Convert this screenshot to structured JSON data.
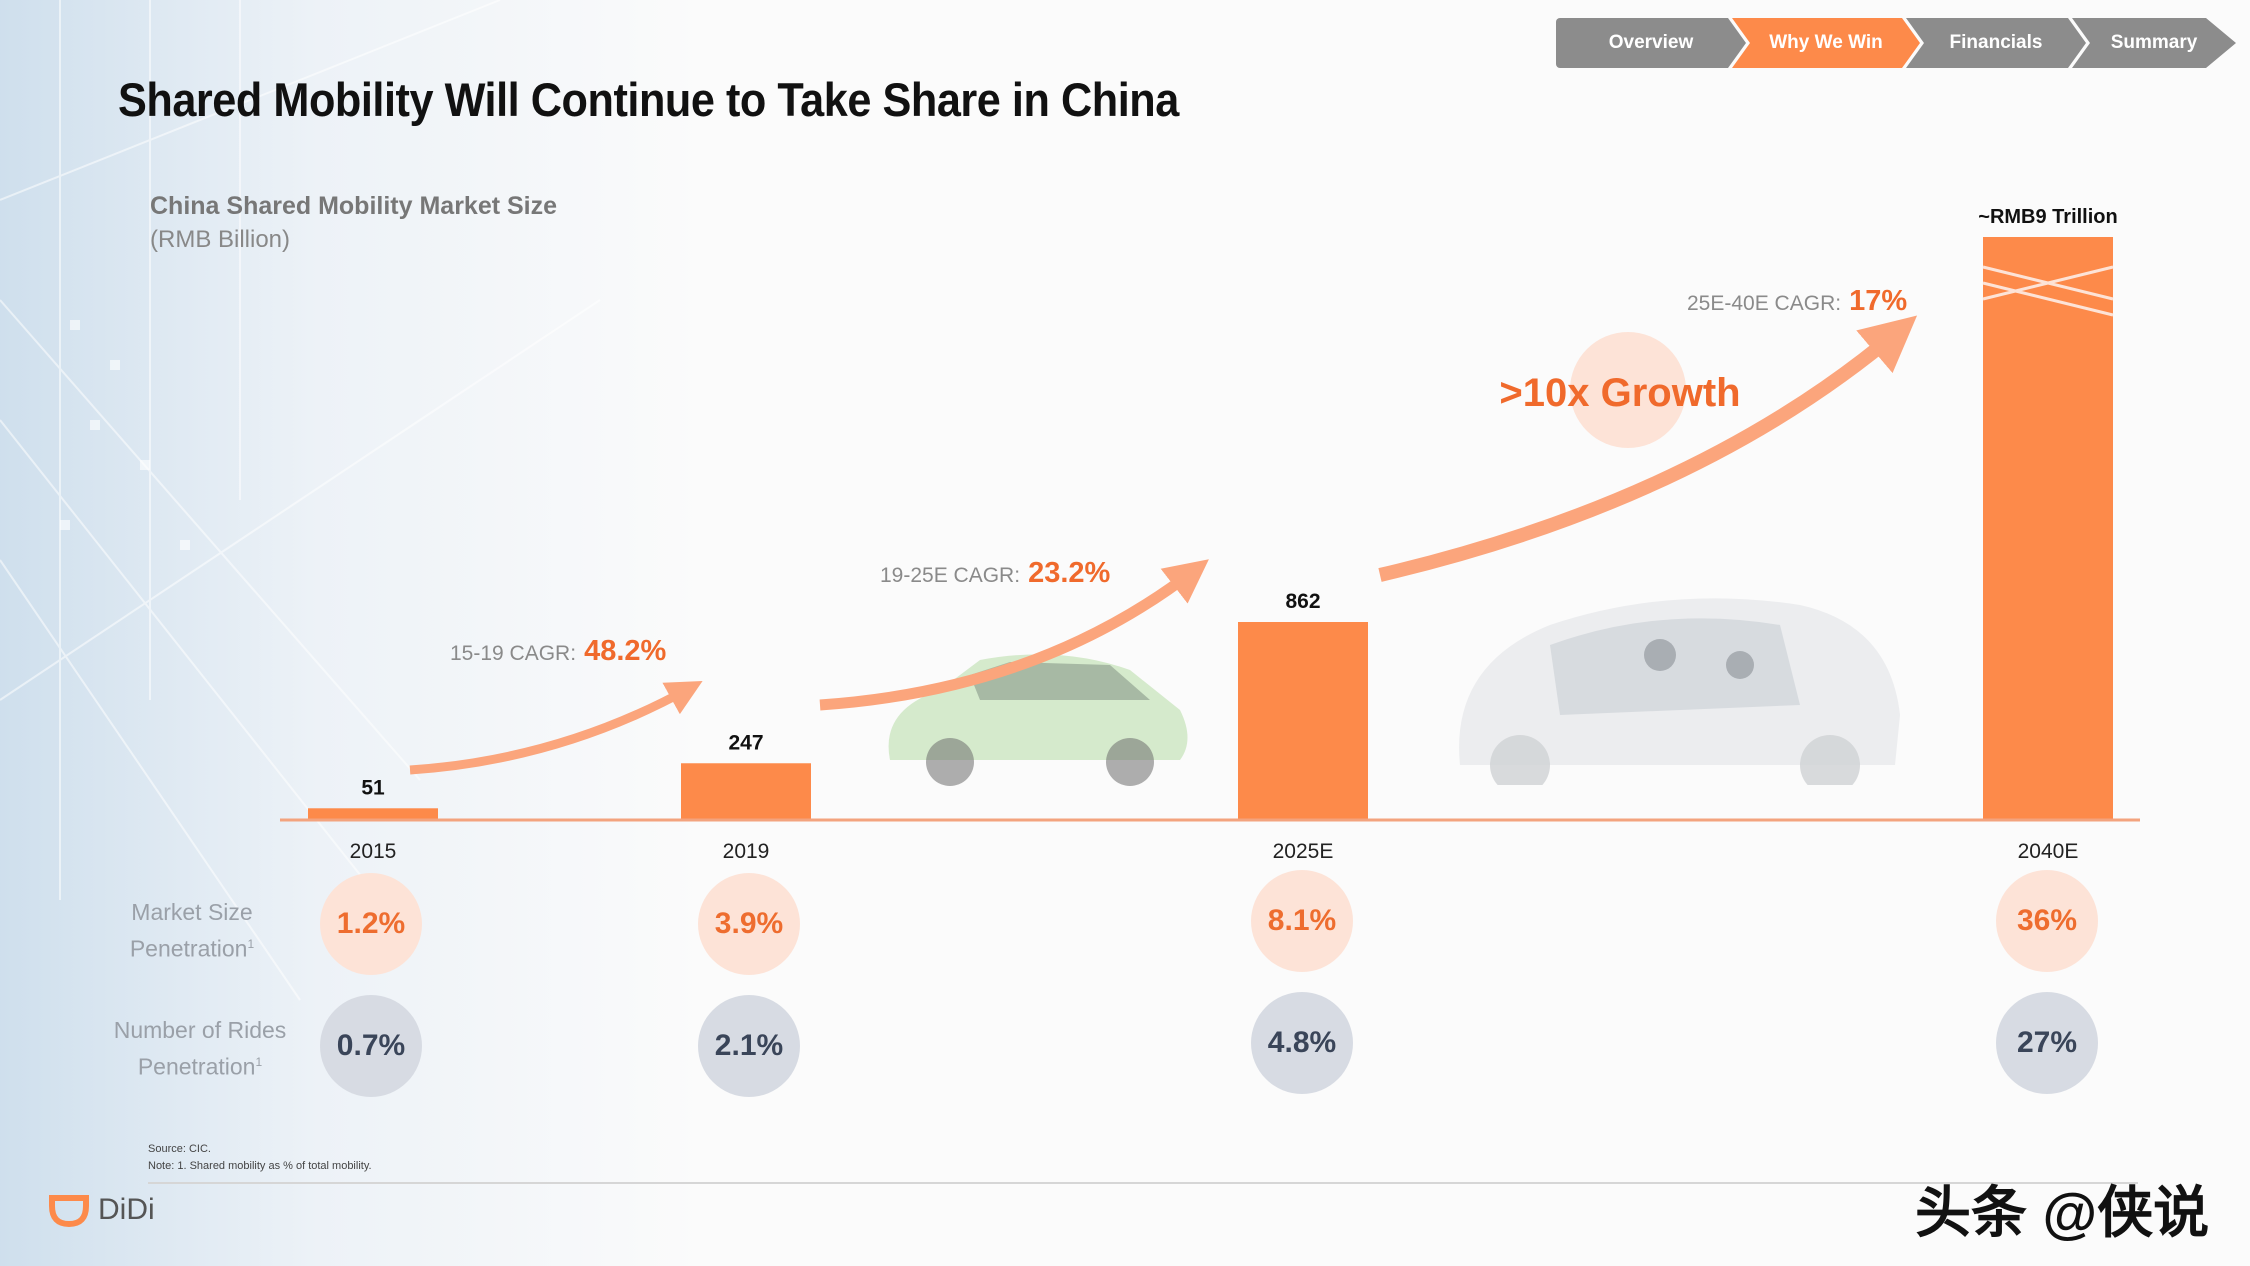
{
  "page_title": "Shared Mobility Will Continue to Take Share in China",
  "tabs": [
    {
      "label": "Overview",
      "active": false
    },
    {
      "label": "Why We Win",
      "active": true
    },
    {
      "label": "Financials",
      "active": false
    },
    {
      "label": "Summary",
      "active": false
    }
  ],
  "colors": {
    "accent": "#fd8a4a",
    "tab_inactive": "#8c8c8c",
    "arrow": "#fba57c"
  },
  "chart_data": {
    "type": "bar",
    "title": "China Shared Mobility Market Size",
    "unit": "(RMB Billion)",
    "categories": [
      "2015",
      "2019",
      "2025E",
      "2040E"
    ],
    "values": [
      51,
      247,
      862,
      9000
    ],
    "value_labels": [
      "51",
      "247",
      "862",
      "~RMB9 Trillion"
    ],
    "axis_break_on": "2040E",
    "cagr": [
      {
        "prefix": "15-19 CAGR:",
        "value": "48.2%"
      },
      {
        "prefix": "19-25E CAGR:",
        "value": "23.2%"
      },
      {
        "prefix": "25E-40E CAGR:",
        "value": "17%"
      }
    ],
    "growth_callout": ">10x Growth",
    "rows": [
      {
        "label_line1": "Market Size",
        "label_line2": "Penetration",
        "footnote": "1",
        "values": [
          "1.2%",
          "3.9%",
          "8.1%",
          "36%"
        ]
      },
      {
        "label_line1": "Number of Rides",
        "label_line2": "Penetration",
        "footnote": "1",
        "values": [
          "0.7%",
          "2.1%",
          "4.8%",
          "27%"
        ]
      }
    ]
  },
  "source_line1": "Source: CIC.",
  "source_line2": "Note: 1. Shared mobility as % of total mobility.",
  "logo_text": "DiDi",
  "watermark": "头条 @侠说"
}
